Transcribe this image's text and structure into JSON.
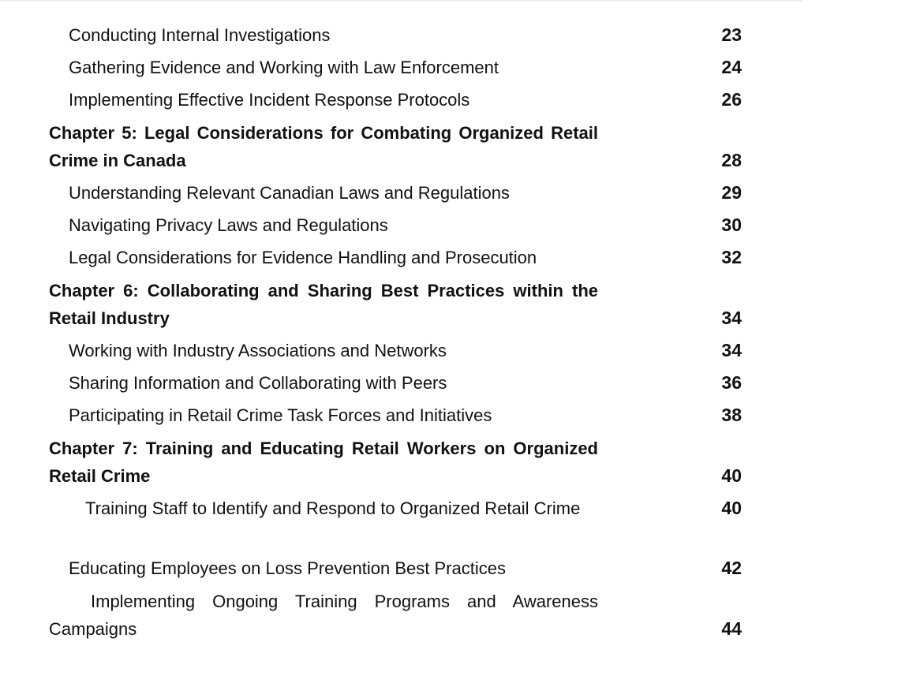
{
  "toc": {
    "entries": [
      {
        "title": "Conducting Internal Investigations",
        "page": "23"
      },
      {
        "title": "Gathering Evidence and Working with Law Enforcement",
        "page": "24"
      },
      {
        "title": "Implementing Effective Incident Response Protocols",
        "page": "26"
      },
      {
        "title": "Chapter 5: Legal Considerations for Combating Organized Retail Crime in Canada",
        "page": "28"
      },
      {
        "title": "Understanding Relevant Canadian Laws and Regulations",
        "page": "29"
      },
      {
        "title": "Navigating Privacy Laws and Regulations",
        "page": "30"
      },
      {
        "title": "Legal Considerations for Evidence Handling and Prosecution",
        "page": "32"
      },
      {
        "title": "Chapter 6: Collaborating and Sharing Best Practices within the Retail Industry",
        "page": "34"
      },
      {
        "title": "Working with Industry Associations and Networks",
        "page": "34"
      },
      {
        "title": "Sharing Information and Collaborating with Peers",
        "page": "36"
      },
      {
        "title": "Participating in Retail Crime Task Forces and Initiatives",
        "page": "38"
      },
      {
        "title": "Chapter 7: Training and Educating Retail Workers on Organized Retail Crime",
        "page": "40"
      },
      {
        "title": "Training Staff to Identify and Respond to Organized Retail Crime",
        "page": "40"
      },
      {
        "title": "Educating Employees on Loss Prevention Best Practices",
        "page": "42"
      },
      {
        "title": "Implementing Ongoing Training Programs and Awareness Campaigns",
        "page": "44"
      }
    ]
  }
}
